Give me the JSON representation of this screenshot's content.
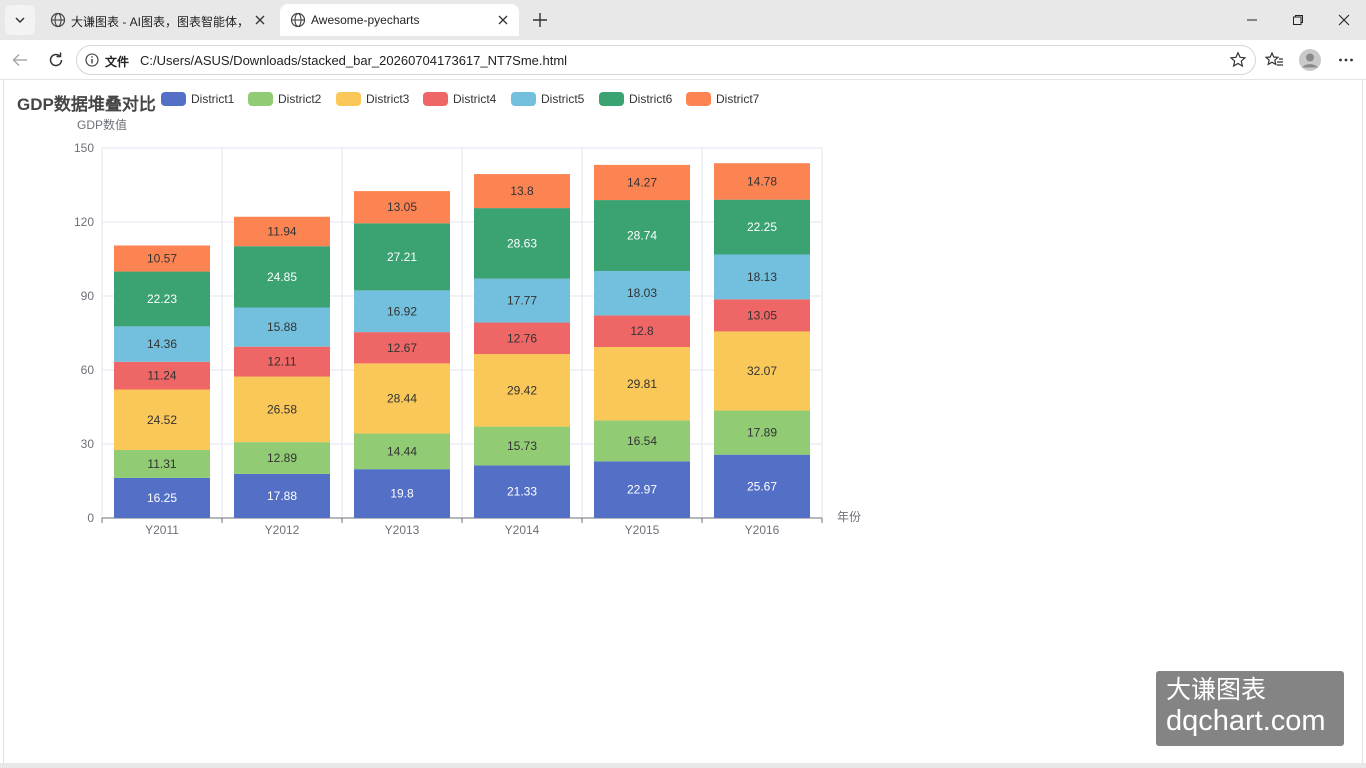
{
  "browser": {
    "tabs": [
      {
        "label": "大谦图表 - AI图表，图表智能体，",
        "active": false
      },
      {
        "label": "Awesome-pyecharts",
        "active": true
      }
    ],
    "address": {
      "site_label": "文件",
      "url": "C:/Users/ASUS/Downloads/stacked_bar_20260704173617_NT7Sme.html"
    }
  },
  "watermark": {
    "line1": "大谦图表",
    "line2": "dqchart.com"
  },
  "chart_data": {
    "type": "bar",
    "stacked": true,
    "title": "GDP数据堆叠对比",
    "ylabel": "GDP数值",
    "xlabel": "年份",
    "ylim": [
      0,
      150
    ],
    "yticks": [
      0,
      30,
      60,
      90,
      120,
      150
    ],
    "categories": [
      "Y2011",
      "Y2012",
      "Y2013",
      "Y2014",
      "Y2015",
      "Y2016"
    ],
    "legend_position": "top",
    "series": [
      {
        "name": "District1",
        "color": "#5470c6",
        "label_color": "#ffffff",
        "values": [
          16.25,
          17.88,
          19.8,
          21.33,
          22.97,
          25.67
        ]
      },
      {
        "name": "District2",
        "color": "#91cc75",
        "label_color": "#333333",
        "values": [
          11.31,
          12.89,
          14.44,
          15.73,
          16.54,
          17.89
        ]
      },
      {
        "name": "District3",
        "color": "#fac858",
        "label_color": "#333333",
        "values": [
          24.52,
          26.58,
          28.44,
          29.42,
          29.81,
          32.07
        ]
      },
      {
        "name": "District4",
        "color": "#ee6666",
        "label_color": "#333333",
        "values": [
          11.24,
          12.11,
          12.67,
          12.76,
          12.8,
          13.05
        ]
      },
      {
        "name": "District5",
        "color": "#73c0de",
        "label_color": "#333333",
        "values": [
          14.36,
          15.88,
          16.92,
          17.77,
          18.03,
          18.13
        ]
      },
      {
        "name": "District6",
        "color": "#3ba272",
        "label_color": "#ffffff",
        "values": [
          22.23,
          24.85,
          27.21,
          28.63,
          28.74,
          22.25
        ]
      },
      {
        "name": "District7",
        "color": "#fc8452",
        "label_color": "#333333",
        "values": [
          10.57,
          11.94,
          13.05,
          13.8,
          14.27,
          14.78
        ]
      }
    ]
  }
}
